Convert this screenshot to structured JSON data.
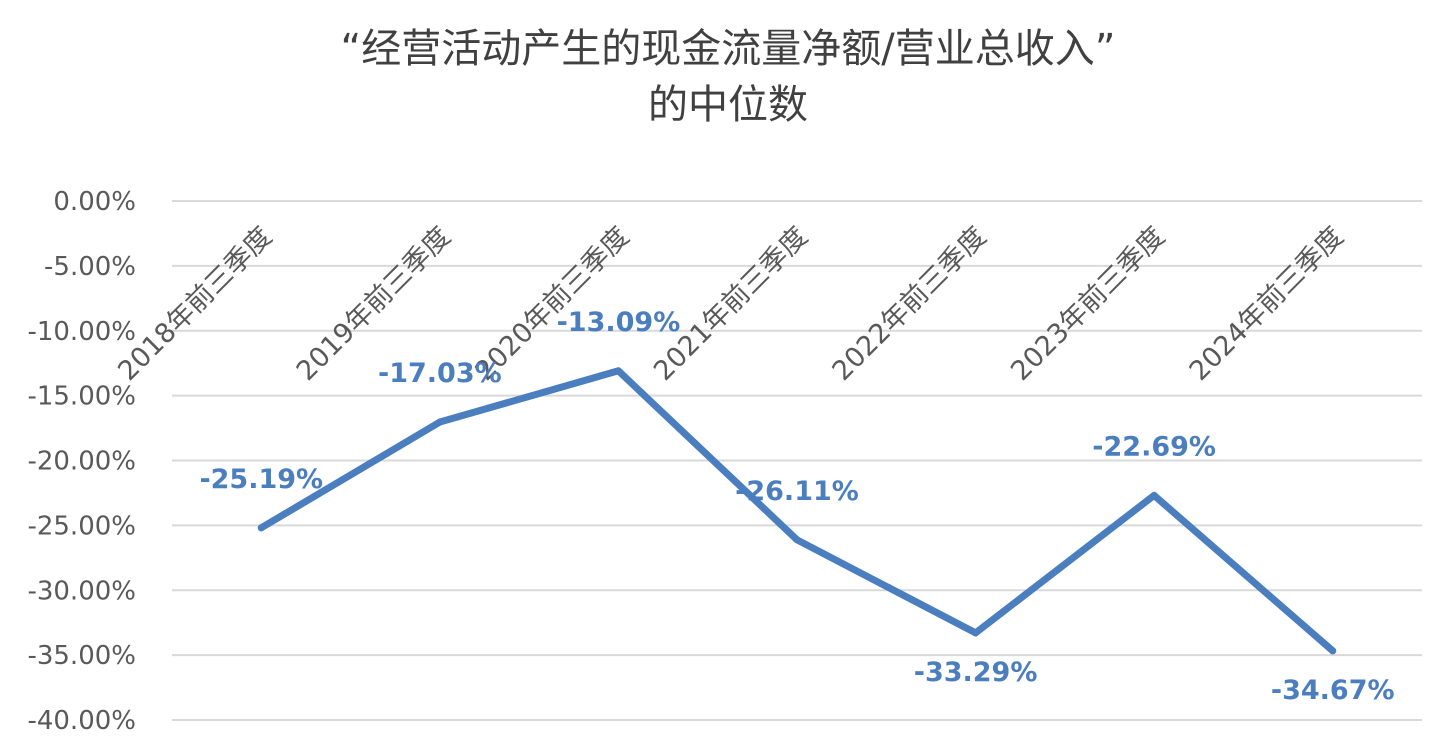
{
  "chart_data": {
    "type": "line",
    "title": [
      "“经营活动产生的现金流量净额/营业总收入”",
      "的中位数"
    ],
    "categories": [
      "2018年前三季度",
      "2019年前三季度",
      "2020年前三季度",
      "2021年前三季度",
      "2022年前三季度",
      "2023年前三季度",
      "2024年前三季度"
    ],
    "series": [
      {
        "values": [
          -25.19,
          -17.03,
          -13.09,
          -26.11,
          -33.29,
          -22.69,
          -34.67
        ],
        "data_labels": [
          "-25.19%",
          "-17.03%",
          "-13.09%",
          "-26.11%",
          "-33.29%",
          "-22.69%",
          "-34.67%"
        ],
        "color": "#4a7ebf"
      }
    ],
    "y_ticks": [
      "0.00%",
      "-5.00%",
      "-10.00%",
      "-15.00%",
      "-20.00%",
      "-25.00%",
      "-30.00%",
      "-35.00%",
      "-40.00%"
    ],
    "ylim": [
      -40,
      0
    ],
    "grid": true,
    "legend": "none"
  }
}
